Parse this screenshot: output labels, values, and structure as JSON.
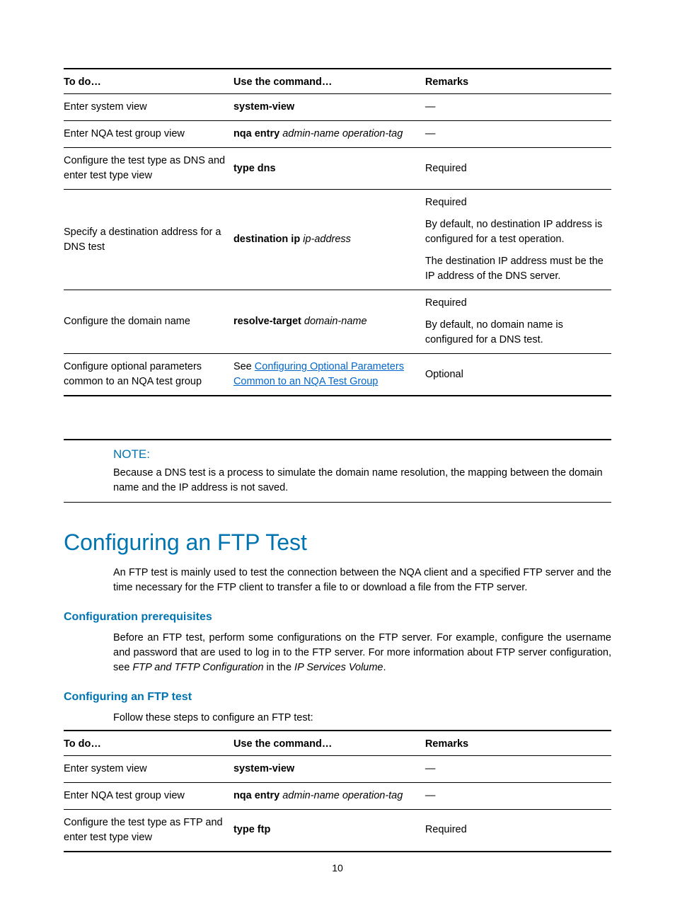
{
  "table1": {
    "headers": {
      "todo": "To do…",
      "cmd": "Use the command…",
      "rem": "Remarks"
    },
    "rows": [
      {
        "todo": "Enter system view",
        "cmd_bold": "system-view",
        "cmd_ital": "",
        "rem": "—"
      },
      {
        "todo": "Enter NQA test group view",
        "cmd_bold": "nqa entry",
        "cmd_ital": "admin-name operation-tag",
        "rem": "—"
      },
      {
        "todo": "Configure the test type as DNS and enter test type view",
        "cmd_bold": "type dns",
        "cmd_ital": "",
        "rem": "Required"
      },
      {
        "todo": "Specify a destination address for a DNS test",
        "cmd_bold": "destination ip",
        "cmd_ital": "ip-address",
        "rem_p1": "Required",
        "rem_p2": "By default, no destination IP address is configured for a test operation.",
        "rem_p3": "The destination IP address must be the IP address of the DNS server."
      },
      {
        "todo": "Configure the domain name",
        "cmd_bold": "resolve-target",
        "cmd_ital": "domain-name",
        "rem_p1": "Required",
        "rem_p2": "By default, no domain name is configured for a DNS test."
      },
      {
        "todo": "Configure optional parameters common to an NQA test group",
        "cmd_pre": "See ",
        "cmd_link": "Configuring Optional Parameters Common to an NQA Test Group",
        "rem": "Optional"
      }
    ]
  },
  "note": {
    "label": "NOTE:",
    "text": "Because a DNS test is a process to simulate the domain name resolution, the mapping between the domain name and the IP address is not saved."
  },
  "section": {
    "h2": "Configuring an FTP Test",
    "intro": "An FTP test is mainly used to test the connection between the NQA client and a specified FTP server and the time necessary for the FTP client to transfer a file to or download a file from the FTP server.",
    "prereq_h": "Configuration prerequisites",
    "prereq_p_pre": "Before an FTP test, perform some configurations on the FTP server. For example, configure the username and password that are used to log in to the FTP server. For more information about FTP server configuration, see ",
    "prereq_i1": "FTP and TFTP Configuration",
    "prereq_mid": " in the ",
    "prereq_i2": "IP Services Volume",
    "prereq_end": ".",
    "cfg_h": "Configuring an FTP test",
    "cfg_lead": "Follow these steps to configure an FTP test:"
  },
  "table2": {
    "headers": {
      "todo": "To do…",
      "cmd": "Use the command…",
      "rem": "Remarks"
    },
    "rows": [
      {
        "todo": "Enter system view",
        "cmd_bold": "system-view",
        "cmd_ital": "",
        "rem": "—"
      },
      {
        "todo": "Enter NQA test group view",
        "cmd_bold": "nqa entry",
        "cmd_ital": "admin-name operation-tag",
        "rem": "—"
      },
      {
        "todo": "Configure the test type as FTP and enter test type view",
        "cmd_bold": "type ftp",
        "cmd_ital": "",
        "rem": "Required"
      }
    ]
  },
  "page_num": "10"
}
